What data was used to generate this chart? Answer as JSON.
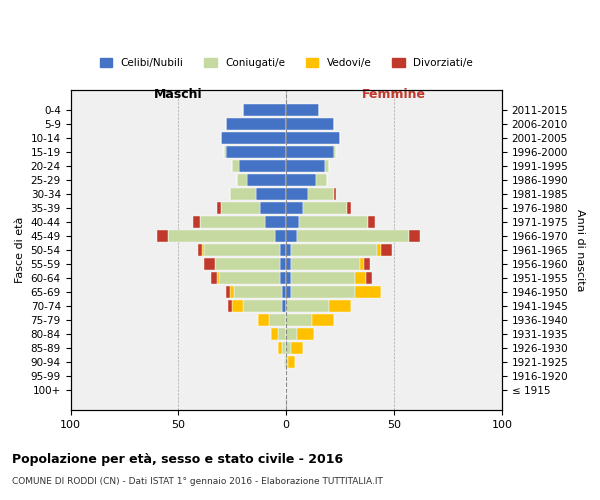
{
  "age_groups": [
    "100+",
    "95-99",
    "90-94",
    "85-89",
    "80-84",
    "75-79",
    "70-74",
    "65-69",
    "60-64",
    "55-59",
    "50-54",
    "45-49",
    "40-44",
    "35-39",
    "30-34",
    "25-29",
    "20-24",
    "15-19",
    "10-14",
    "5-9",
    "0-4"
  ],
  "birth_years": [
    "≤ 1915",
    "1916-1920",
    "1921-1925",
    "1926-1930",
    "1931-1935",
    "1936-1940",
    "1941-1945",
    "1946-1950",
    "1951-1955",
    "1956-1960",
    "1961-1965",
    "1966-1970",
    "1971-1975",
    "1976-1980",
    "1981-1985",
    "1986-1990",
    "1991-1995",
    "1996-2000",
    "2001-2005",
    "2006-2010",
    "2011-2015"
  ],
  "m_cel": [
    0,
    0,
    0,
    0,
    0,
    0,
    2,
    2,
    3,
    3,
    3,
    5,
    10,
    12,
    14,
    18,
    22,
    28,
    30,
    28,
    20
  ],
  "m_con": [
    0,
    0,
    1,
    2,
    4,
    8,
    18,
    22,
    28,
    30,
    35,
    50,
    30,
    18,
    12,
    5,
    3,
    1,
    0,
    0,
    0
  ],
  "m_ved": [
    0,
    0,
    0,
    2,
    3,
    5,
    5,
    2,
    1,
    0,
    1,
    0,
    0,
    0,
    0,
    0,
    0,
    0,
    0,
    0,
    0
  ],
  "m_div": [
    0,
    0,
    0,
    0,
    0,
    0,
    2,
    2,
    3,
    5,
    2,
    5,
    3,
    2,
    0,
    0,
    0,
    0,
    0,
    0,
    0
  ],
  "f_nub": [
    0,
    0,
    0,
    0,
    0,
    0,
    0,
    2,
    2,
    2,
    2,
    5,
    6,
    8,
    10,
    14,
    18,
    22,
    25,
    22,
    15
  ],
  "f_con": [
    0,
    0,
    1,
    2,
    5,
    12,
    20,
    30,
    30,
    32,
    40,
    52,
    32,
    20,
    12,
    5,
    2,
    1,
    0,
    0,
    0
  ],
  "f_ved": [
    0,
    0,
    3,
    6,
    8,
    10,
    10,
    12,
    5,
    2,
    2,
    0,
    0,
    0,
    0,
    0,
    0,
    0,
    0,
    0,
    0
  ],
  "f_div": [
    0,
    0,
    0,
    0,
    0,
    0,
    0,
    0,
    3,
    3,
    5,
    5,
    3,
    2,
    1,
    0,
    0,
    0,
    0,
    0,
    0
  ],
  "colors": {
    "celibi_nubili": "#4472c4",
    "coniugati": "#c5d9a0",
    "vedovi": "#ffc000",
    "divorziati": "#c0392b"
  },
  "title1": "Popolazione per età, sesso e stato civile - 2016",
  "title2": "COMUNE DI RODDI (CN) - Dati ISTAT 1° gennaio 2016 - Elaborazione TUTTITALIA.IT",
  "xlabel_left": "Maschi",
  "xlabel_right": "Femmine",
  "ylabel_left": "Fasce di età",
  "ylabel_right": "Anni di nascita",
  "xlim": 100,
  "legend_labels": [
    "Celibi/Nubili",
    "Coniugati/e",
    "Vedovi/e",
    "Divorziati/e"
  ],
  "bg_color": "#f0f0f0",
  "bar_height": 0.8
}
